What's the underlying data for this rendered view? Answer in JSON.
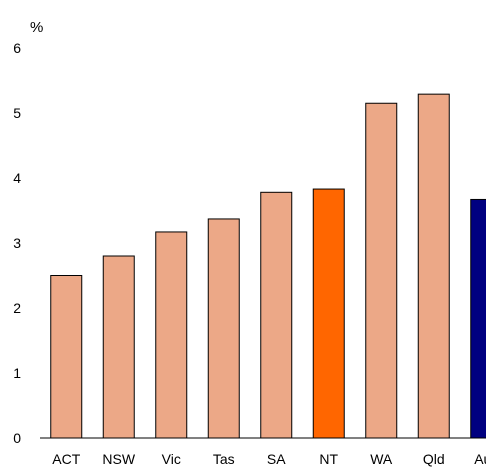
{
  "chart_data": {
    "type": "bar",
    "title": "",
    "xlabel": "",
    "ylabel": "%",
    "ylim": [
      0,
      6
    ],
    "yticks": [
      0,
      1,
      2,
      3,
      4,
      5,
      6
    ],
    "grid": false,
    "categories": [
      "ACT",
      "NSW",
      "Vic",
      "Tas",
      "SA",
      "NT",
      "WA",
      "Qld",
      "Aus"
    ],
    "values": [
      2.5,
      2.8,
      3.17,
      3.37,
      3.78,
      3.83,
      5.15,
      5.29,
      3.67
    ],
    "colors": [
      "#eca887",
      "#eca887",
      "#eca887",
      "#eca887",
      "#eca887",
      "#ff6600",
      "#eca887",
      "#eca887",
      "#000080"
    ],
    "bar_outline_color": "#000000"
  }
}
